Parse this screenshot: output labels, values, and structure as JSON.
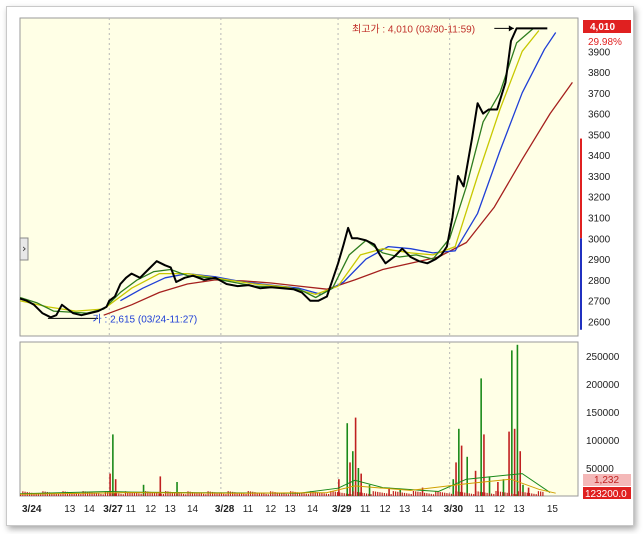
{
  "colors": {
    "background": "#ffffe6",
    "price": "#000000",
    "ma_short": "#2e7d1e",
    "ma_mid": "#c8c800",
    "ma_blue": "#1f3fd6",
    "ma_long": "#a5201e",
    "high_label": "#c0302a",
    "low_label": "#1f3fd6",
    "badge": "#e02020",
    "axis_red_bar": "#e02020",
    "axis_blue_bar": "#2030c0"
  },
  "chart_data": [
    {
      "type": "line",
      "name": "price",
      "x_labels": [
        {
          "text": "3/24",
          "pos": 0,
          "bold": true
        },
        {
          "text": "13",
          "pos": 0.09
        },
        {
          "text": "14",
          "pos": 0.125
        },
        {
          "text": "3/27",
          "pos": 0.16,
          "bold": true
        },
        {
          "text": "11",
          "pos": 0.2
        },
        {
          "text": "12",
          "pos": 0.235
        },
        {
          "text": "13",
          "pos": 0.27
        },
        {
          "text": "14",
          "pos": 0.31
        },
        {
          "text": "3/28",
          "pos": 0.36,
          "bold": true
        },
        {
          "text": "11",
          "pos": 0.41
        },
        {
          "text": "12",
          "pos": 0.45
        },
        {
          "text": "13",
          "pos": 0.485
        },
        {
          "text": "14",
          "pos": 0.525
        },
        {
          "text": "3/29",
          "pos": 0.57,
          "bold": true
        },
        {
          "text": "11",
          "pos": 0.62
        },
        {
          "text": "12",
          "pos": 0.655
        },
        {
          "text": "13",
          "pos": 0.69
        },
        {
          "text": "14",
          "pos": 0.73
        },
        {
          "text": "3/30",
          "pos": 0.77,
          "bold": true
        },
        {
          "text": "11",
          "pos": 0.825
        },
        {
          "text": "12",
          "pos": 0.86
        },
        {
          "text": "13",
          "pos": 0.895
        },
        {
          "text": "15",
          "pos": 0.955
        }
      ],
      "ylim": [
        2530,
        4060
      ],
      "yticks": [
        2600,
        2700,
        2800,
        2900,
        3000,
        3100,
        3200,
        3300,
        3400,
        3500,
        3600,
        3700,
        3800,
        3900
      ],
      "series": [
        {
          "key": "price",
          "values": [
            [
              0,
              2710
            ],
            [
              0.012,
              2700
            ],
            [
              0.025,
              2680
            ],
            [
              0.04,
              2640
            ],
            [
              0.055,
              2620
            ],
            [
              0.065,
              2630
            ],
            [
              0.075,
              2680
            ],
            [
              0.085,
              2660
            ],
            [
              0.095,
              2640
            ],
            [
              0.11,
              2630
            ],
            [
              0.125,
              2640
            ],
            [
              0.14,
              2650
            ],
            [
              0.155,
              2670
            ],
            [
              0.16,
              2700
            ],
            [
              0.17,
              2720
            ],
            [
              0.18,
              2780
            ],
            [
              0.19,
              2810
            ],
            [
              0.2,
              2830
            ],
            [
              0.215,
              2810
            ],
            [
              0.23,
              2850
            ],
            [
              0.245,
              2890
            ],
            [
              0.26,
              2870
            ],
            [
              0.27,
              2860
            ],
            [
              0.28,
              2790
            ],
            [
              0.295,
              2810
            ],
            [
              0.31,
              2820
            ],
            [
              0.33,
              2800
            ],
            [
              0.35,
              2810
            ],
            [
              0.37,
              2780
            ],
            [
              0.39,
              2770
            ],
            [
              0.41,
              2775
            ],
            [
              0.43,
              2760
            ],
            [
              0.45,
              2765
            ],
            [
              0.47,
              2760
            ],
            [
              0.49,
              2755
            ],
            [
              0.505,
              2740
            ],
            [
              0.52,
              2700
            ],
            [
              0.535,
              2700
            ],
            [
              0.55,
              2720
            ],
            [
              0.56,
              2800
            ],
            [
              0.57,
              2880
            ],
            [
              0.58,
              2970
            ],
            [
              0.588,
              3050
            ],
            [
              0.595,
              3000
            ],
            [
              0.605,
              3000
            ],
            [
              0.62,
              2990
            ],
            [
              0.635,
              2970
            ],
            [
              0.645,
              2920
            ],
            [
              0.655,
              2880
            ],
            [
              0.67,
              2910
            ],
            [
              0.685,
              2950
            ],
            [
              0.7,
              2910
            ],
            [
              0.715,
              2890
            ],
            [
              0.73,
              2880
            ],
            [
              0.745,
              2900
            ],
            [
              0.755,
              2920
            ],
            [
              0.765,
              2960
            ],
            [
              0.775,
              3100
            ],
            [
              0.785,
              3300
            ],
            [
              0.795,
              3250
            ],
            [
              0.81,
              3480
            ],
            [
              0.82,
              3650
            ],
            [
              0.83,
              3600
            ],
            [
              0.84,
              3620
            ],
            [
              0.855,
              3620
            ],
            [
              0.87,
              3750
            ],
            [
              0.88,
              3950
            ],
            [
              0.89,
              4010
            ],
            [
              0.92,
              4010
            ],
            [
              0.945,
              4010
            ]
          ]
        },
        {
          "key": "ma_short",
          "values": [
            [
              0,
              2715
            ],
            [
              0.03,
              2690
            ],
            [
              0.06,
              2650
            ],
            [
              0.09,
              2645
            ],
            [
              0.12,
              2640
            ],
            [
              0.15,
              2660
            ],
            [
              0.18,
              2740
            ],
            [
              0.21,
              2800
            ],
            [
              0.24,
              2840
            ],
            [
              0.27,
              2850
            ],
            [
              0.3,
              2820
            ],
            [
              0.34,
              2810
            ],
            [
              0.38,
              2790
            ],
            [
              0.42,
              2770
            ],
            [
              0.46,
              2765
            ],
            [
              0.5,
              2755
            ],
            [
              0.53,
              2715
            ],
            [
              0.56,
              2760
            ],
            [
              0.59,
              2920
            ],
            [
              0.62,
              2990
            ],
            [
              0.65,
              2930
            ],
            [
              0.68,
              2910
            ],
            [
              0.71,
              2920
            ],
            [
              0.74,
              2900
            ],
            [
              0.77,
              3000
            ],
            [
              0.8,
              3250
            ],
            [
              0.83,
              3560
            ],
            [
              0.86,
              3700
            ],
            [
              0.89,
              3940
            ],
            [
              0.92,
              4010
            ]
          ]
        },
        {
          "key": "ma_mid",
          "values": [
            [
              0,
              2700
            ],
            [
              0.05,
              2670
            ],
            [
              0.1,
              2650
            ],
            [
              0.15,
              2660
            ],
            [
              0.2,
              2760
            ],
            [
              0.25,
              2830
            ],
            [
              0.3,
              2830
            ],
            [
              0.36,
              2805
            ],
            [
              0.42,
              2780
            ],
            [
              0.48,
              2765
            ],
            [
              0.53,
              2730
            ],
            [
              0.57,
              2770
            ],
            [
              0.61,
              2920
            ],
            [
              0.65,
              2950
            ],
            [
              0.7,
              2930
            ],
            [
              0.74,
              2920
            ],
            [
              0.78,
              2960
            ],
            [
              0.82,
              3300
            ],
            [
              0.86,
              3620
            ],
            [
              0.9,
              3900
            ],
            [
              0.93,
              4000
            ]
          ]
        },
        {
          "key": "ma_blue",
          "values": [
            [
              0.18,
              2700
            ],
            [
              0.22,
              2760
            ],
            [
              0.26,
              2810
            ],
            [
              0.3,
              2830
            ],
            [
              0.35,
              2815
            ],
            [
              0.4,
              2790
            ],
            [
              0.45,
              2775
            ],
            [
              0.5,
              2760
            ],
            [
              0.54,
              2730
            ],
            [
              0.58,
              2790
            ],
            [
              0.62,
              2900
            ],
            [
              0.66,
              2960
            ],
            [
              0.7,
              2950
            ],
            [
              0.74,
              2930
            ],
            [
              0.78,
              2940
            ],
            [
              0.82,
              3120
            ],
            [
              0.86,
              3420
            ],
            [
              0.9,
              3700
            ],
            [
              0.94,
              3910
            ],
            [
              0.96,
              3990
            ]
          ]
        },
        {
          "key": "ma_long",
          "values": [
            [
              0.15,
              2630
            ],
            [
              0.2,
              2680
            ],
            [
              0.25,
              2740
            ],
            [
              0.3,
              2780
            ],
            [
              0.35,
              2800
            ],
            [
              0.4,
              2795
            ],
            [
              0.45,
              2785
            ],
            [
              0.5,
              2770
            ],
            [
              0.55,
              2755
            ],
            [
              0.6,
              2800
            ],
            [
              0.65,
              2850
            ],
            [
              0.7,
              2880
            ],
            [
              0.75,
              2910
            ],
            [
              0.8,
              2980
            ],
            [
              0.85,
              3150
            ],
            [
              0.9,
              3380
            ],
            [
              0.95,
              3600
            ],
            [
              0.99,
              3750
            ]
          ]
        }
      ],
      "high_annotation": "최고가 : 4,010 (03/30-11:59)",
      "low_annotation": "가 : 2,615 (03/24-11:27)",
      "price_badge": "4,010",
      "change_badge": "29.98%"
    },
    {
      "type": "bar",
      "name": "volume",
      "ylim": [
        0,
        275000
      ],
      "yticks": [
        50000,
        100000,
        150000,
        200000,
        250000
      ],
      "ytick_labels": [
        "50000",
        "100000",
        "150000",
        "200000",
        "250000"
      ],
      "volume_badge": "1,232",
      "volume_footer": "123200.0",
      "spikes": [
        [
          0.16,
          40000
        ],
        [
          0.165,
          110000
        ],
        [
          0.17,
          30000
        ],
        [
          0.22,
          20000
        ],
        [
          0.25,
          35000
        ],
        [
          0.28,
          25000
        ],
        [
          0.57,
          30000
        ],
        [
          0.585,
          130000
        ],
        [
          0.59,
          60000
        ],
        [
          0.595,
          80000
        ],
        [
          0.6,
          140000
        ],
        [
          0.605,
          50000
        ],
        [
          0.61,
          40000
        ],
        [
          0.625,
          20000
        ],
        [
          0.66,
          15000
        ],
        [
          0.68,
          12000
        ],
        [
          0.72,
          15000
        ],
        [
          0.775,
          30000
        ],
        [
          0.78,
          60000
        ],
        [
          0.785,
          120000
        ],
        [
          0.79,
          90000
        ],
        [
          0.8,
          70000
        ],
        [
          0.815,
          45000
        ],
        [
          0.825,
          210000
        ],
        [
          0.83,
          110000
        ],
        [
          0.84,
          35000
        ],
        [
          0.855,
          25000
        ],
        [
          0.865,
          30000
        ],
        [
          0.875,
          115000
        ],
        [
          0.88,
          260000
        ],
        [
          0.885,
          120000
        ],
        [
          0.89,
          270000
        ],
        [
          0.895,
          80000
        ],
        [
          0.9,
          20000
        ],
        [
          0.91,
          15000
        ]
      ]
    }
  ]
}
